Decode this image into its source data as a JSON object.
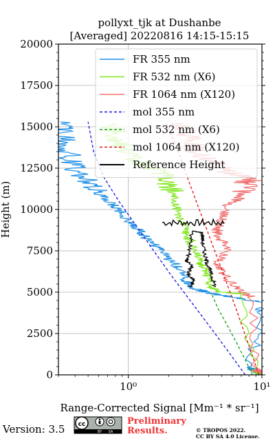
{
  "chart_data": {
    "type": "line",
    "title": "pollyxt_tjk at Dushanbe",
    "subtitle": "[Averaged] 20220816 14:15-15:15",
    "xlabel": "Range-Corrected Signal [Mm⁻¹ * sr⁻¹]",
    "ylabel": "Height (m)",
    "xscale": "log",
    "xlim": [
      0.3,
      10
    ],
    "ylim": [
      0,
      20000
    ],
    "x_ticks": [
      {
        "value": 1,
        "label": "10⁰"
      },
      {
        "value": 10,
        "label": "10¹"
      }
    ],
    "y_ticks": [
      0,
      2500,
      5000,
      7500,
      10000,
      12500,
      15000,
      17500,
      20000
    ],
    "y_tick_labels": [
      "0",
      "2500",
      "5000",
      "7500",
      "10000",
      "12500",
      "15000",
      "17500",
      "20000"
    ],
    "grid": true,
    "legend_position": "top-right",
    "series": [
      {
        "name": "FR 355 nm",
        "color": "#1f8fe6",
        "style": "solid",
        "points": [
          [
            10,
            0
          ],
          [
            9,
            200
          ],
          [
            8,
            500
          ],
          [
            10,
            3500
          ],
          [
            9.5,
            4400
          ],
          [
            6,
            4700
          ],
          [
            4,
            4950
          ],
          [
            3.2,
            5200
          ],
          [
            2.7,
            5700
          ],
          [
            2.4,
            6500
          ],
          [
            2.0,
            7000
          ],
          [
            1.7,
            7600
          ],
          [
            1.4,
            8200
          ],
          [
            1.2,
            8700
          ],
          [
            1.0,
            9300
          ],
          [
            0.85,
            10000
          ],
          [
            0.7,
            10500
          ],
          [
            0.6,
            11000
          ],
          [
            0.5,
            11700
          ],
          [
            0.42,
            12300
          ],
          [
            0.38,
            13000
          ],
          [
            0.34,
            13800
          ],
          [
            0.32,
            14500
          ],
          [
            0.31,
            15300
          ]
        ]
      },
      {
        "name": "FR 532 nm (X6)",
        "color": "#7fe61a",
        "style": "solid",
        "points": [
          [
            10,
            50
          ],
          [
            9,
            200
          ],
          [
            7,
            4900
          ],
          [
            5,
            5000
          ],
          [
            4.2,
            5300
          ],
          [
            3.9,
            6000
          ],
          [
            3.6,
            6600
          ],
          [
            3.4,
            7000
          ],
          [
            3.1,
            7600
          ],
          [
            2.8,
            8400
          ],
          [
            2.6,
            9000
          ],
          [
            2.4,
            9800
          ],
          [
            2.2,
            10500
          ],
          [
            2.05,
            11300
          ],
          [
            1.9,
            12000
          ],
          [
            1.6,
            12400
          ],
          [
            1.3,
            12700
          ],
          [
            1.1,
            13200
          ],
          [
            0.9,
            13800
          ],
          [
            0.8,
            14500
          ],
          [
            0.75,
            15200
          ]
        ]
      },
      {
        "name": "FR 1064 nm (X120)",
        "color": "#f07070",
        "style": "solid",
        "points": [
          [
            10,
            100
          ],
          [
            9,
            300
          ],
          [
            8.5,
            4700
          ],
          [
            7,
            5000
          ],
          [
            6,
            5500
          ],
          [
            5,
            6200
          ],
          [
            4.8,
            6800
          ],
          [
            5.5,
            7700
          ],
          [
            4.8,
            8300
          ],
          [
            4.6,
            8800
          ],
          [
            5,
            9500
          ],
          [
            5.5,
            10200
          ],
          [
            7,
            10800
          ],
          [
            7.5,
            11500
          ],
          [
            8,
            11800
          ],
          [
            6,
            12200
          ],
          [
            4.5,
            12700
          ],
          [
            3.5,
            13200
          ],
          [
            3,
            13800
          ],
          [
            2.8,
            14500
          ],
          [
            2.6,
            15200
          ]
        ]
      },
      {
        "name": "mol 355 nm",
        "color": "#1010e0",
        "style": "dashed",
        "points": [
          [
            7.5,
            0
          ],
          [
            5.5,
            1500
          ],
          [
            4,
            3000
          ],
          [
            2.9,
            4500
          ],
          [
            2.1,
            6000
          ],
          [
            1.55,
            7500
          ],
          [
            1.15,
            9000
          ],
          [
            0.85,
            10500
          ],
          [
            0.65,
            12000
          ],
          [
            0.55,
            13500
          ],
          [
            0.5,
            15300
          ]
        ]
      },
      {
        "name": "mol 532 nm (X6)",
        "color": "#10a010",
        "style": "dashed",
        "points": [
          [
            8.5,
            0
          ],
          [
            7.4,
            1000
          ],
          [
            6.4,
            2000
          ],
          [
            5.5,
            3000
          ],
          [
            4.7,
            4000
          ],
          [
            4.2,
            4900
          ]
        ]
      },
      {
        "name": "mol 1064 nm (X120)",
        "color": "#e01010",
        "style": "dashed",
        "points": [
          [
            9.5,
            0
          ],
          [
            7.8,
            2000
          ],
          [
            6.4,
            4000
          ],
          [
            5.2,
            6000
          ],
          [
            4.2,
            8000
          ],
          [
            3.4,
            10000
          ],
          [
            2.75,
            12000
          ],
          [
            2.25,
            14000
          ],
          [
            1.9,
            15300
          ]
        ]
      },
      {
        "name": "Reference Height",
        "color": "#000000",
        "style": "solid",
        "points": [
          [
            2.9,
            5300
          ],
          [
            3.1,
            5700
          ],
          [
            2.8,
            6100
          ],
          [
            3.0,
            6600
          ],
          [
            2.7,
            6900
          ],
          [
            2.8,
            7000
          ],
          [
            2.9,
            7800
          ],
          [
            3.0,
            8700
          ],
          [
            3.6,
            8600
          ],
          [
            3.6,
            8100
          ],
          [
            3.7,
            7500
          ],
          [
            3.8,
            7000
          ],
          [
            4.0,
            6500
          ],
          [
            4.2,
            6000
          ],
          [
            4.5,
            5300
          ]
        ]
      }
    ],
    "reference_band": {
      "y": [
        9000,
        9400
      ],
      "x": [
        1.8,
        5.2
      ]
    }
  },
  "footer": {
    "version": "Version: 3.5",
    "license_badge": [
      "cc",
      "BY",
      "SA"
    ],
    "preliminary_line1": "Preliminary",
    "preliminary_line2": "Results.",
    "copyright_line1": "© TROPOS 2022.",
    "copyright_line2": "CC BY SA 4.0 License."
  }
}
